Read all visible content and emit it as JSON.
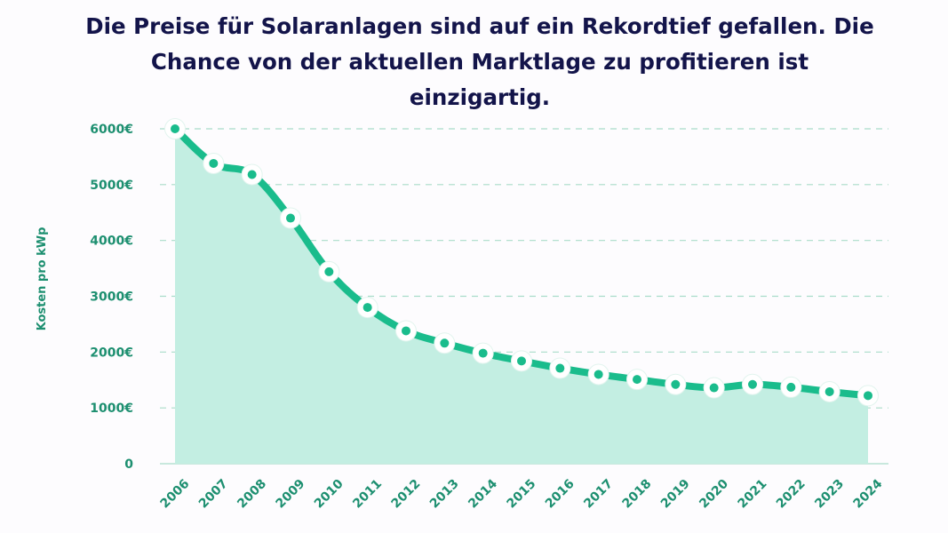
{
  "colors": {
    "title": "#13144a",
    "line": "#1abc8c",
    "area": "#c3eee2",
    "grid": "#a9dcc9",
    "axis_text": "#1d8f70",
    "marker_fill": "#ffffff",
    "marker_dot": "#1abc8c"
  },
  "chart_data": {
    "type": "area",
    "title": "Die Preise für Solaranlagen sind auf ein Rekordtief gefallen. Die Chance von der aktuellen Marktlage zu profitieren ist einzigartig.",
    "xlabel": "",
    "ylabel": "Kosten pro kWp",
    "ylim": [
      0,
      6000
    ],
    "yticks": [
      0,
      1000,
      2000,
      3000,
      4000,
      5000,
      6000
    ],
    "ytick_labels": [
      "0",
      "1000€",
      "2000€",
      "3000€",
      "4000€",
      "5000€",
      "6000€"
    ],
    "grid": true,
    "x": [
      "2006",
      "2007",
      "2008",
      "2009",
      "2010",
      "2011",
      "2012",
      "2013",
      "2014",
      "2015",
      "2016",
      "2017",
      "2018",
      "2019",
      "2020",
      "2021",
      "2022",
      "2023",
      "2024"
    ],
    "values": [
      6000,
      5380,
      5180,
      4400,
      3440,
      2800,
      2380,
      2160,
      1980,
      1840,
      1710,
      1600,
      1510,
      1420,
      1360,
      1420,
      1370,
      1290,
      1220
    ]
  }
}
